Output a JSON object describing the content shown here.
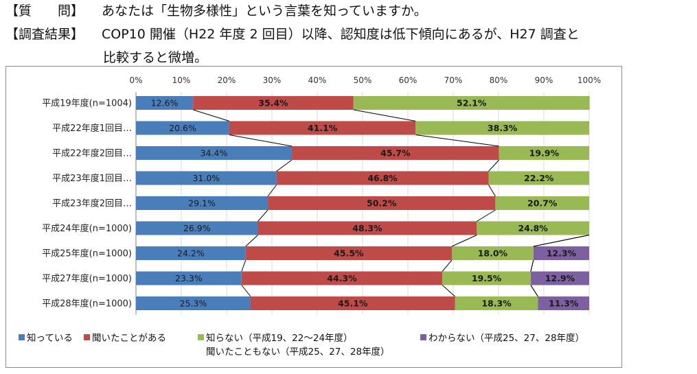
{
  "header": {
    "question_label": "【質　　問】",
    "question_text": "あなたは「生物多様性」という言葉を知っていますか。",
    "result_label": "【調査結果】",
    "result_text": "COP10 開催（H22 年度 2 回目）以降、認知度は低下傾向にあるが、H27 調査と",
    "result_text_cont": "比較すると微増。"
  },
  "legend": {
    "know": "知っている",
    "heard": "聞いたことがある",
    "notknow": "知らない（平成19、22～24年度）",
    "notknow_line2": "聞いたこともない（平成25、27、28年度）",
    "unknown": "わからない（平成25、27、28年度）"
  },
  "colors": {
    "know": "#4a7ebb",
    "heard": "#be4b48",
    "notknow": "#98b954",
    "unknown": "#7d60a0"
  },
  "chart_data": {
    "type": "bar",
    "orientation": "horizontal",
    "stacked": true,
    "percent": true,
    "categories": [
      "平成19年度(n=1004)",
      "平成22年度1回目…",
      "平成22年度2回目…",
      "平成23年度1回目…",
      "平成23年度2回目…",
      "平成24年度(n=1000)",
      "平成25年度(n=1000)",
      "平成27年度(n=1000)",
      "平成28年度(n=1000)"
    ],
    "xticks": [
      "0%",
      "10%",
      "20%",
      "30%",
      "40%",
      "50%",
      "60%",
      "70%",
      "80%",
      "90%",
      "100%"
    ],
    "xlim": [
      0,
      100
    ],
    "series": [
      {
        "key": "know",
        "values": [
          12.6,
          20.6,
          34.4,
          31.0,
          29.1,
          26.9,
          24.2,
          23.3,
          25.3
        ],
        "labels": [
          "12.6%",
          "20.6%",
          "34.4%",
          "31.0%",
          "29.1%",
          "26.9%",
          "24.2%",
          "23.3%",
          "25.3%"
        ]
      },
      {
        "key": "heard",
        "values": [
          35.4,
          41.1,
          45.7,
          46.8,
          50.2,
          48.3,
          45.5,
          44.3,
          45.1
        ],
        "labels": [
          "35.4%",
          "41.1%",
          "45.7%",
          "46.8%",
          "50.2%",
          "48.3%",
          "45.5%",
          "44.3%",
          "45.1%"
        ]
      },
      {
        "key": "notknow",
        "values": [
          52.1,
          38.3,
          19.9,
          22.2,
          20.7,
          24.8,
          18.0,
          19.5,
          18.3
        ],
        "labels": [
          "52.1%",
          "38.3%",
          "19.9%",
          "22.2%",
          "20.7%",
          "24.8%",
          "18.0%",
          "19.5%",
          "18.3%"
        ]
      },
      {
        "key": "unknown",
        "values": [
          null,
          null,
          null,
          null,
          null,
          null,
          12.3,
          12.9,
          11.3
        ],
        "labels": [
          null,
          null,
          null,
          null,
          null,
          null,
          "12.3%",
          "12.9%",
          "11.3%"
        ]
      }
    ],
    "legend_position": "bottom",
    "series_lines": true
  }
}
